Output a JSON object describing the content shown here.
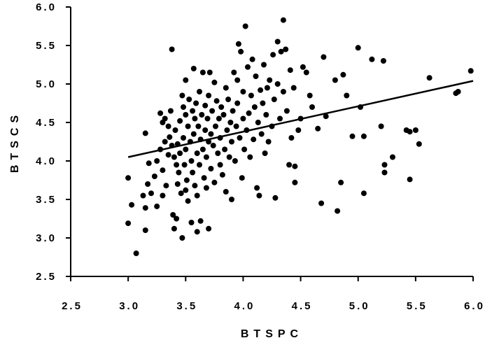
{
  "chart_data": {
    "type": "scatter",
    "title": "",
    "xlabel": "BTSPC",
    "ylabel": "BTSCS",
    "xlim": [
      2.5,
      6.0
    ],
    "ylim": [
      2.5,
      6.0
    ],
    "x_ticks": [
      "2.5",
      "3.0",
      "3.5",
      "4.0",
      "4.5",
      "5.0",
      "5.5",
      "6.0"
    ],
    "y_ticks": [
      "2.5",
      "3.0",
      "3.5",
      "4.0",
      "4.5",
      "5.0",
      "5.5",
      "6.0"
    ],
    "grid": false,
    "marker_color": "#000000",
    "points": [
      [
        3.0,
        3.78
      ],
      [
        3.0,
        3.19
      ],
      [
        3.03,
        3.43
      ],
      [
        3.07,
        2.8
      ],
      [
        3.13,
        3.55
      ],
      [
        3.15,
        4.36
      ],
      [
        3.15,
        3.39
      ],
      [
        3.15,
        3.1
      ],
      [
        3.17,
        3.7
      ],
      [
        3.18,
        3.97
      ],
      [
        3.2,
        3.58
      ],
      [
        3.23,
        3.8
      ],
      [
        3.25,
        4.0
      ],
      [
        3.25,
        3.41
      ],
      [
        3.28,
        4.62
      ],
      [
        3.28,
        4.15
      ],
      [
        3.3,
        3.88
      ],
      [
        3.3,
        4.5
      ],
      [
        3.3,
        3.55
      ],
      [
        3.32,
        4.25
      ],
      [
        3.32,
        4.55
      ],
      [
        3.33,
        3.68
      ],
      [
        3.35,
        4.08
      ],
      [
        3.35,
        4.45
      ],
      [
        3.36,
        4.31
      ],
      [
        3.37,
        4.65
      ],
      [
        3.38,
        5.45
      ],
      [
        3.38,
        4.2
      ],
      [
        3.39,
        3.3
      ],
      [
        3.4,
        4.05
      ],
      [
        3.4,
        3.12
      ],
      [
        3.41,
        4.4
      ],
      [
        3.42,
        3.95
      ],
      [
        3.42,
        3.25
      ],
      [
        3.43,
        4.22
      ],
      [
        3.43,
        3.7
      ],
      [
        3.44,
        3.85
      ],
      [
        3.45,
        4.52
      ],
      [
        3.45,
        4.1
      ],
      [
        3.46,
        3.58
      ],
      [
        3.47,
        4.85
      ],
      [
        3.47,
        3.0
      ],
      [
        3.48,
        4.7
      ],
      [
        3.48,
        4.3
      ],
      [
        3.49,
        3.95
      ],
      [
        3.5,
        4.6
      ],
      [
        3.5,
        4.15
      ],
      [
        3.5,
        3.62
      ],
      [
        3.5,
        5.05
      ],
      [
        3.51,
        3.75
      ],
      [
        3.52,
        4.45
      ],
      [
        3.52,
        3.48
      ],
      [
        3.53,
        4.8
      ],
      [
        3.54,
        4.25
      ],
      [
        3.55,
        4.0
      ],
      [
        3.55,
        3.2
      ],
      [
        3.56,
        4.65
      ],
      [
        3.56,
        3.85
      ],
      [
        3.57,
        4.35
      ],
      [
        3.57,
        5.2
      ],
      [
        3.58,
        4.55
      ],
      [
        3.58,
        3.68
      ],
      [
        3.59,
        4.75
      ],
      [
        3.6,
        4.1
      ],
      [
        3.6,
        3.55
      ],
      [
        3.6,
        3.08
      ],
      [
        3.61,
        4.45
      ],
      [
        3.62,
        4.9
      ],
      [
        3.62,
        3.95
      ],
      [
        3.63,
        4.28
      ],
      [
        3.63,
        3.22
      ],
      [
        3.64,
        4.6
      ],
      [
        3.65,
        5.15
      ],
      [
        3.65,
        4.15
      ],
      [
        3.66,
        3.78
      ],
      [
        3.67,
        4.4
      ],
      [
        3.67,
        4.72
      ],
      [
        3.68,
        4.05
      ],
      [
        3.68,
        3.65
      ],
      [
        3.69,
        4.55
      ],
      [
        3.7,
        4.25
      ],
      [
        3.7,
        4.85
      ],
      [
        3.7,
        3.12
      ],
      [
        3.71,
        5.15
      ],
      [
        3.72,
        4.35
      ],
      [
        3.72,
        3.9
      ],
      [
        3.73,
        4.65
      ],
      [
        3.74,
        4.2
      ],
      [
        3.75,
        5.02
      ],
      [
        3.75,
        3.72
      ],
      [
        3.76,
        4.45
      ],
      [
        3.77,
        4.78
      ],
      [
        3.78,
        4.1
      ],
      [
        3.79,
        4.55
      ],
      [
        3.8,
        3.95
      ],
      [
        3.8,
        4.3
      ],
      [
        3.81,
        4.7
      ],
      [
        3.82,
        3.82
      ],
      [
        3.83,
        4.6
      ],
      [
        3.84,
        4.15
      ],
      [
        3.85,
        4.95
      ],
      [
        3.85,
        3.6
      ],
      [
        3.86,
        4.4
      ],
      [
        3.87,
        4.8
      ],
      [
        3.88,
        4.05
      ],
      [
        3.89,
        4.5
      ],
      [
        3.9,
        3.5
      ],
      [
        3.9,
        4.25
      ],
      [
        3.91,
        4.65
      ],
      [
        3.92,
        5.15
      ],
      [
        3.93,
        4.0
      ],
      [
        3.94,
        4.45
      ],
      [
        3.95,
        5.05
      ],
      [
        3.95,
        4.75
      ],
      [
        3.96,
        5.52
      ],
      [
        3.97,
        4.3
      ],
      [
        3.98,
        5.42
      ],
      [
        3.99,
        3.78
      ],
      [
        4.0,
        4.55
      ],
      [
        4.0,
        4.9
      ],
      [
        4.01,
        4.15
      ],
      [
        4.02,
        5.75
      ],
      [
        4.03,
        4.4
      ],
      [
        4.04,
        5.22
      ],
      [
        4.05,
        4.62
      ],
      [
        4.06,
        4.05
      ],
      [
        4.07,
        4.85
      ],
      [
        4.08,
        5.32
      ],
      [
        4.09,
        4.28
      ],
      [
        4.1,
        4.7
      ],
      [
        4.11,
        5.1
      ],
      [
        4.12,
        3.65
      ],
      [
        4.13,
        4.5
      ],
      [
        4.14,
        3.55
      ],
      [
        4.15,
        4.92
      ],
      [
        4.16,
        4.35
      ],
      [
        4.17,
        4.75
      ],
      [
        4.18,
        5.25
      ],
      [
        4.19,
        4.1
      ],
      [
        4.2,
        4.6
      ],
      [
        4.21,
        4.95
      ],
      [
        4.22,
        4.25
      ],
      [
        4.23,
        5.05
      ],
      [
        4.25,
        4.45
      ],
      [
        4.26,
        5.38
      ],
      [
        4.27,
        4.8
      ],
      [
        4.28,
        3.52
      ],
      [
        4.3,
        5.0
      ],
      [
        4.3,
        5.55
      ],
      [
        4.32,
        4.55
      ],
      [
        4.33,
        5.42
      ],
      [
        4.35,
        5.83
      ],
      [
        4.35,
        4.9
      ],
      [
        4.37,
        5.45
      ],
      [
        4.38,
        4.65
      ],
      [
        4.4,
        3.95
      ],
      [
        4.41,
        5.18
      ],
      [
        4.42,
        4.3
      ],
      [
        4.44,
        4.95
      ],
      [
        4.45,
        3.72
      ],
      [
        4.45,
        3.93
      ],
      [
        4.48,
        4.4
      ],
      [
        4.5,
        4.55
      ],
      [
        4.52,
        5.22
      ],
      [
        4.55,
        5.15
      ],
      [
        4.58,
        4.85
      ],
      [
        4.6,
        4.7
      ],
      [
        4.65,
        4.42
      ],
      [
        4.68,
        3.45
      ],
      [
        4.7,
        5.35
      ],
      [
        4.72,
        4.58
      ],
      [
        4.8,
        5.05
      ],
      [
        4.82,
        3.35
      ],
      [
        4.85,
        3.72
      ],
      [
        4.87,
        5.12
      ],
      [
        4.9,
        4.85
      ],
      [
        4.95,
        4.32
      ],
      [
        5.0,
        5.47
      ],
      [
        5.02,
        4.7
      ],
      [
        5.05,
        3.58
      ],
      [
        5.05,
        4.32
      ],
      [
        5.12,
        5.32
      ],
      [
        5.2,
        4.45
      ],
      [
        5.22,
        5.3
      ],
      [
        5.23,
        3.95
      ],
      [
        5.23,
        3.85
      ],
      [
        5.3,
        4.05
      ],
      [
        5.42,
        4.4
      ],
      [
        5.45,
        4.38
      ],
      [
        5.45,
        3.76
      ],
      [
        5.5,
        4.4
      ],
      [
        5.53,
        4.22
      ],
      [
        5.62,
        5.08
      ],
      [
        5.85,
        4.88
      ],
      [
        5.87,
        4.9
      ],
      [
        5.98,
        5.17
      ]
    ],
    "regression_line": {
      "x": [
        3.0,
        6.0
      ],
      "y": [
        4.05,
        5.04
      ]
    }
  }
}
